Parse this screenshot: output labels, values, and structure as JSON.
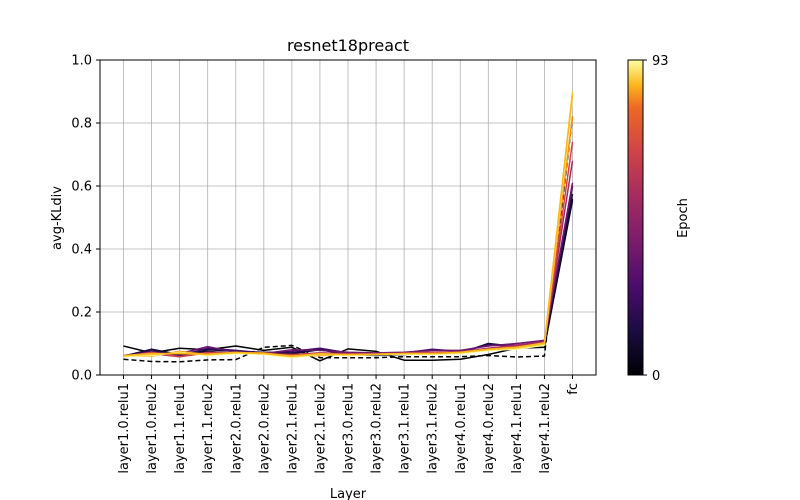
{
  "chart_data": {
    "type": "line",
    "title": "resnet18preact",
    "xlabel": "Layer",
    "ylabel": "avg-KLdiv",
    "ylim": [
      0,
      1.0
    ],
    "yticks": [
      "0.0",
      "0.2",
      "0.4",
      "0.6",
      "0.8",
      "1.0"
    ],
    "grid": true,
    "categories": [
      "layer1.0.relu1",
      "layer1.0.relu2",
      "layer1.1.relu1",
      "layer1.1.relu2",
      "layer2.0.relu1",
      "layer2.0.relu2",
      "layer2.1.relu1",
      "layer2.1.relu2",
      "layer3.0.relu1",
      "layer3.0.relu2",
      "layer3.1.relu1",
      "layer3.1.relu2",
      "layer4.0.relu1",
      "layer4.0.relu2",
      "layer4.1.relu1",
      "layer4.1.relu2",
      "fc"
    ],
    "colorbar": {
      "label": "Epoch",
      "min_label": "0",
      "max_label": "93",
      "min": 0,
      "max": 93,
      "colormap": "inferno"
    },
    "series": [
      {
        "epoch": 0,
        "dashed": true,
        "color": "#000000",
        "values": [
          0.05,
          0.043,
          0.042,
          0.048,
          0.049,
          0.088,
          0.094,
          0.055,
          0.055,
          0.055,
          0.058,
          0.058,
          0.058,
          0.062,
          0.057,
          0.06,
          0.82
        ]
      },
      {
        "epoch": 1,
        "dashed": false,
        "color": "#000004",
        "values": [
          0.092,
          0.07,
          0.085,
          0.08,
          0.092,
          0.078,
          0.088,
          0.045,
          0.083,
          0.075,
          0.047,
          0.047,
          0.05,
          0.065,
          0.085,
          0.088,
          0.555
        ]
      },
      {
        "epoch": 5,
        "dashed": false,
        "color": "#0b0724",
        "values": [
          0.06,
          0.082,
          0.065,
          0.075,
          0.068,
          0.07,
          0.068,
          0.08,
          0.065,
          0.062,
          0.065,
          0.07,
          0.07,
          0.1,
          0.09,
          0.095,
          0.56
        ]
      },
      {
        "epoch": 10,
        "dashed": false,
        "color": "#1b0c41",
        "values": [
          0.058,
          0.08,
          0.06,
          0.08,
          0.075,
          0.072,
          0.07,
          0.082,
          0.068,
          0.065,
          0.068,
          0.072,
          0.072,
          0.098,
          0.092,
          0.1,
          0.575
        ]
      },
      {
        "epoch": 20,
        "dashed": false,
        "color": "#420a68",
        "values": [
          0.062,
          0.075,
          0.062,
          0.085,
          0.078,
          0.07,
          0.075,
          0.085,
          0.07,
          0.068,
          0.07,
          0.082,
          0.075,
          0.095,
          0.095,
          0.105,
          0.6
        ]
      },
      {
        "epoch": 30,
        "dashed": false,
        "color": "#6a176e",
        "values": [
          0.06,
          0.07,
          0.068,
          0.09,
          0.072,
          0.068,
          0.08,
          0.078,
          0.072,
          0.07,
          0.072,
          0.078,
          0.078,
          0.092,
          0.1,
          0.11,
          0.61
        ]
      },
      {
        "epoch": 45,
        "dashed": false,
        "color": "#a52c60",
        "values": [
          0.058,
          0.068,
          0.058,
          0.072,
          0.07,
          0.066,
          0.065,
          0.07,
          0.068,
          0.068,
          0.07,
          0.072,
          0.074,
          0.085,
          0.095,
          0.105,
          0.68
        ]
      },
      {
        "epoch": 55,
        "dashed": false,
        "color": "#cf4446",
        "values": [
          0.058,
          0.072,
          0.058,
          0.07,
          0.068,
          0.068,
          0.064,
          0.068,
          0.066,
          0.066,
          0.068,
          0.07,
          0.072,
          0.082,
          0.09,
          0.1,
          0.74
        ]
      },
      {
        "epoch": 70,
        "dashed": false,
        "color": "#f98e09",
        "values": [
          0.06,
          0.06,
          0.075,
          0.065,
          0.07,
          0.07,
          0.06,
          0.062,
          0.065,
          0.066,
          0.068,
          0.068,
          0.07,
          0.08,
          0.085,
          0.1,
          0.82
        ]
      },
      {
        "epoch": 93,
        "dashed": false,
        "color": "#fcffa4",
        "values": [
          0.058,
          0.062,
          0.072,
          0.062,
          0.068,
          0.066,
          0.055,
          0.065,
          0.062,
          0.064,
          0.066,
          0.066,
          0.068,
          0.078,
          0.082,
          0.095,
          0.88
        ]
      },
      {
        "epoch": 88,
        "dashed": false,
        "color": "#f4d13a",
        "values": [
          0.06,
          0.065,
          0.07,
          0.064,
          0.07,
          0.068,
          0.058,
          0.066,
          0.064,
          0.066,
          0.068,
          0.068,
          0.07,
          0.08,
          0.085,
          0.098,
          0.9
        ]
      },
      {
        "epoch": 80,
        "dashed": false,
        "color": "#fbb61a",
        "values": [
          0.062,
          0.068,
          0.068,
          0.066,
          0.072,
          0.068,
          0.06,
          0.068,
          0.064,
          0.066,
          0.068,
          0.068,
          0.072,
          0.082,
          0.088,
          0.102,
          0.89
        ]
      }
    ]
  }
}
